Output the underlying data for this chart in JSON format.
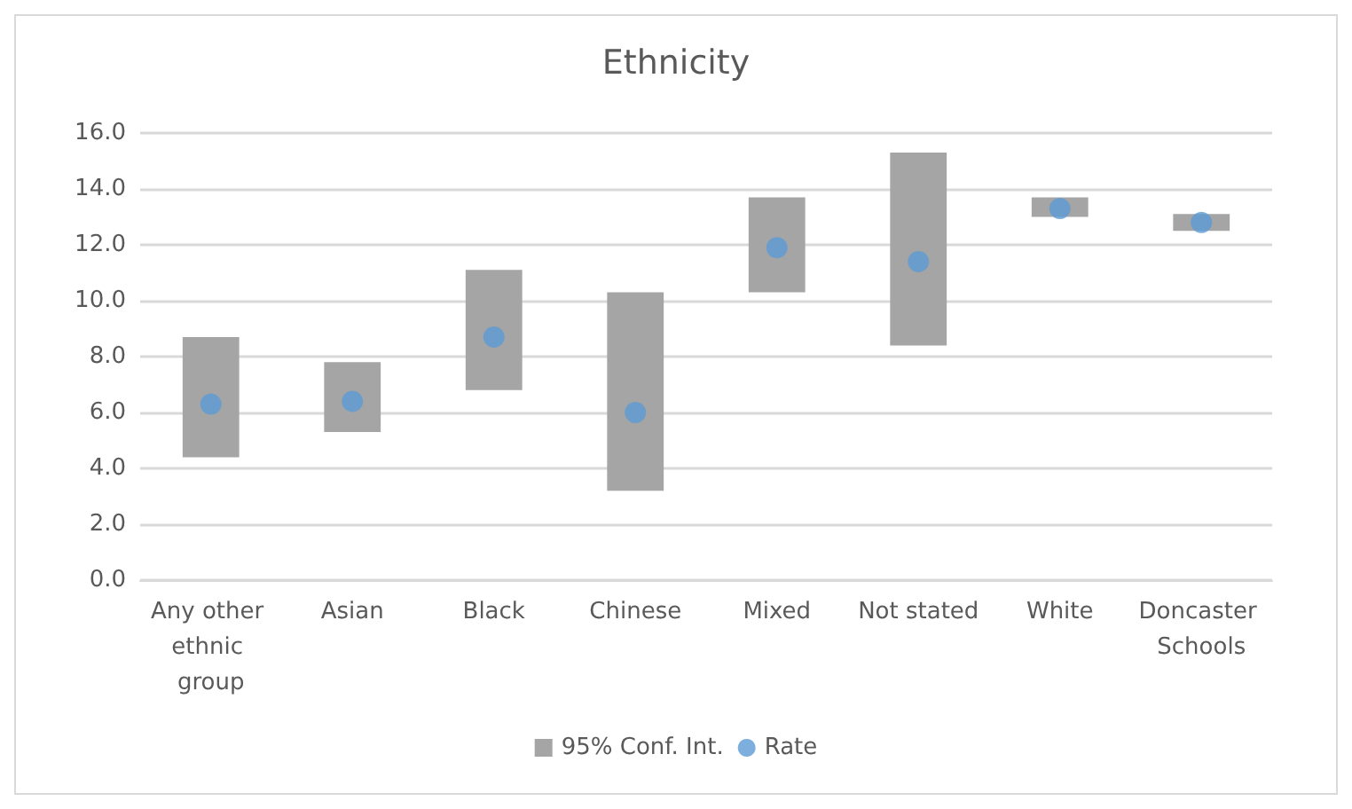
{
  "chart_data": {
    "type": "bar",
    "title": "Ethnicity",
    "categories": [
      "Any other ethnic group",
      "Asian",
      "Black",
      "Chinese",
      "Mixed",
      "Not stated",
      "White",
      "Doncaster Schools"
    ],
    "series": [
      {
        "name": "95% Conf. Int.",
        "color": "#a5a5a5",
        "base": [
          4.4,
          5.3,
          6.8,
          3.2,
          10.3,
          8.4,
          13.0,
          12.5
        ],
        "values": [
          4.3,
          2.5,
          4.3,
          7.1,
          3.4,
          6.9,
          0.7,
          0.6
        ]
      },
      {
        "name": "Rate",
        "type": "scatter",
        "color": "#5b9bd5",
        "marker": "circle",
        "x": [
          "Any other ethnic group",
          "Asian",
          "Black",
          "Chinese",
          "Mixed",
          "Not stated",
          "White",
          "Doncaster Schools"
        ],
        "values": [
          6.3,
          6.4,
          8.7,
          6.0,
          11.9,
          11.4,
          13.3,
          12.8
        ]
      }
    ],
    "ylim": [
      0,
      16
    ],
    "yticks": [
      {
        "value": 0,
        "label": "0.0"
      },
      {
        "value": 2,
        "label": "2.0"
      },
      {
        "value": 4,
        "label": "4.0"
      },
      {
        "value": 6,
        "label": "6.0"
      },
      {
        "value": 8,
        "label": "8.0"
      },
      {
        "value": 10,
        "label": "10.0"
      },
      {
        "value": 12,
        "label": "12.0"
      },
      {
        "value": 14,
        "label": "14.0"
      },
      {
        "value": 16,
        "label": "16.0"
      }
    ],
    "grid": "y",
    "legend": "bottom"
  }
}
